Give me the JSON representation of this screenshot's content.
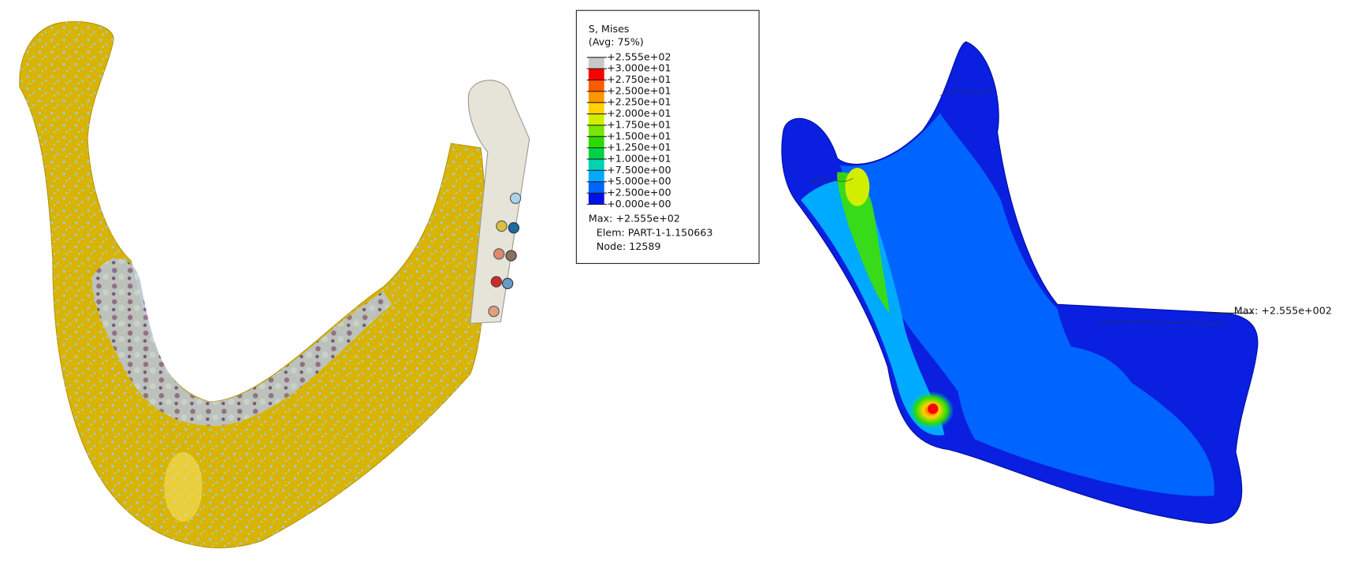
{
  "legend": {
    "title": "S, Mises",
    "subtitle": "(Avg: 75%)",
    "labels": [
      "+2.555e+02",
      "+3.000e+01",
      "+2.750e+01",
      "+2.500e+01",
      "+2.250e+01",
      "+2.000e+01",
      "+1.750e+01",
      "+1.500e+01",
      "+1.250e+01",
      "+1.000e+01",
      "+7.500e+00",
      "+5.000e+00",
      "+2.500e+00",
      "+0.000e+00"
    ],
    "band_colors": [
      "#c8c8c8",
      "#ff0000",
      "#ff5a00",
      "#ff9600",
      "#ffd200",
      "#d2ee00",
      "#78e600",
      "#28dc00",
      "#00d246",
      "#00d2b4",
      "#00aaff",
      "#0064ff",
      "#0010e6"
    ],
    "info": [
      "Max: +2.555e+02",
      "Elem: PART-1-1.150663",
      "Node: 12589"
    ]
  },
  "annotation": "Max: +2.555e+002"
}
